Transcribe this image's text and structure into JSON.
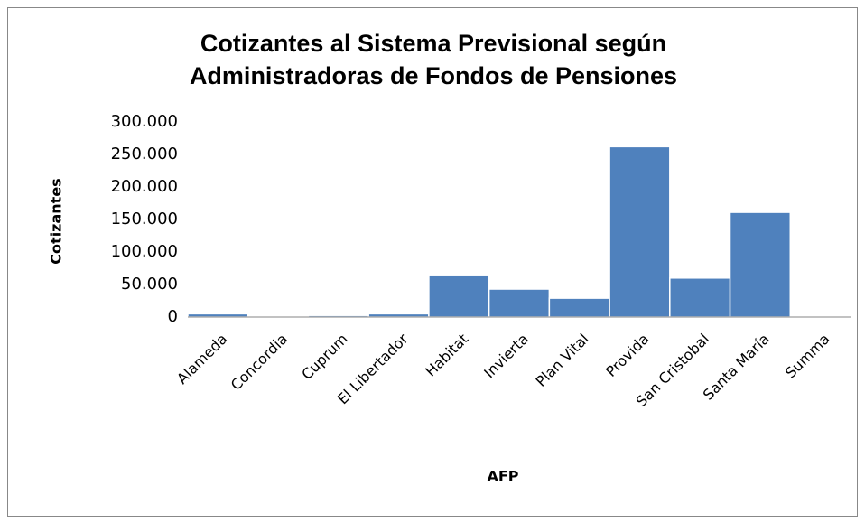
{
  "chart_data": {
    "type": "bar",
    "title": [
      "Cotizantes al Sistema Previsional según",
      "Administradoras de Fondos de Pensiones"
    ],
    "x_label": "AFP",
    "y_label": "Cotizantes",
    "categories": [
      "Alameda",
      "Concordia",
      "Cuprum",
      "El Libertador",
      "Habitat",
      "Invierta",
      "Plan Vital",
      "Provida",
      "San Cristobal",
      "Santa María",
      "Summa"
    ],
    "values": [
      5000,
      1000,
      2500,
      5000,
      65000,
      43000,
      29000,
      262000,
      60000,
      161000,
      0
    ],
    "color": "#4f81bd",
    "ylim": [
      0,
      300000
    ],
    "yticks": [
      0,
      {
        "value": 50000,
        "label": "50.000"
      },
      {
        "value": 100000,
        "label": "100.000"
      },
      {
        "value": 150000,
        "label": "150.000"
      },
      {
        "value": 200000,
        "label": "200.000"
      },
      {
        "value": 250000,
        "label": "250.000"
      },
      {
        "value": 300000,
        "label": "300.000"
      }
    ],
    "grid": false
  }
}
